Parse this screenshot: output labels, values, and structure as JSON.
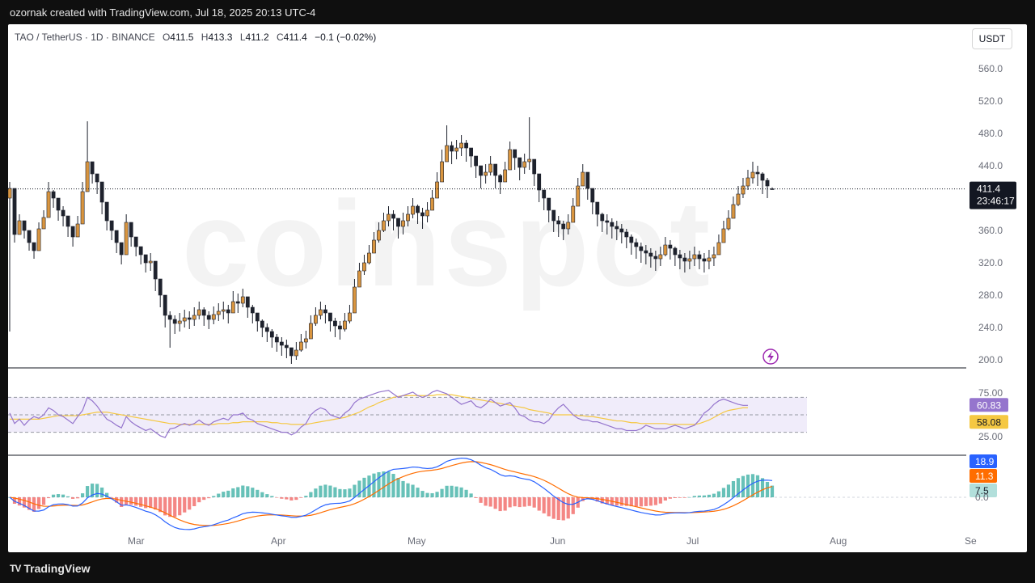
{
  "header": {
    "created_by": "ozornak created with TradingView.com, Jul 18, 2025 20:13 UTC-4"
  },
  "legend": {
    "symbol": "TAO / TetherUS · 1D · BINANCE",
    "o_label": "O",
    "o_value": "411.5",
    "h_label": "H",
    "h_value": "413.3",
    "l_label": "L",
    "l_value": "411.2",
    "c_label": "C",
    "c_value": "411.4",
    "change": "−0.1 (−0.02%)"
  },
  "currency": "USDT",
  "watermark": {
    "text": "coinspot"
  },
  "footer": {
    "brand": "TradingView",
    "brand_mark": "TV"
  },
  "colors": {
    "up": "#d9953f",
    "down": "#1e222d",
    "rsi": "#9575cd",
    "rsi_ma": "#f5c842",
    "macd": "#2962ff",
    "signal": "#ff6d00",
    "hist_pos": "#26a69a",
    "hist_neg": "#ef5350",
    "last_price_bg": "#131722",
    "lightning": "#9c27b0"
  },
  "chart_data": [
    {
      "type": "candlestick",
      "y_ticks": [
        "560.0",
        "520.0",
        "480.0",
        "440.0",
        "400.0",
        "360.0",
        "320.0",
        "280.0",
        "240.0",
        "200.0"
      ],
      "x_ticks": [
        "Mar",
        "Apr",
        "May",
        "Jun",
        "Jul",
        "Aug",
        "Se"
      ],
      "last_price": "411.4",
      "countdown": "23:46:17",
      "close_series": [
        412,
        355,
        372,
        360,
        345,
        335,
        362,
        376,
        408,
        400,
        385,
        378,
        365,
        352,
        368,
        408,
        445,
        430,
        420,
        395,
        372,
        360,
        345,
        330,
        370,
        352,
        340,
        330,
        320,
        322,
        300,
        280,
        255,
        250,
        245,
        248,
        252,
        250,
        255,
        262,
        255,
        250,
        256,
        260,
        262,
        258,
        272,
        270,
        278,
        265,
        258,
        248,
        240,
        235,
        228,
        222,
        218,
        215,
        205,
        212,
        222,
        226,
        245,
        255,
        262,
        258,
        248,
        242,
        238,
        248,
        258,
        290,
        310,
        320,
        332,
        348,
        360,
        372,
        380,
        375,
        365,
        372,
        380,
        390,
        382,
        378,
        385,
        400,
        420,
        445,
        465,
        458,
        462,
        468,
        462,
        452,
        440,
        428,
        432,
        442,
        428,
        420,
        435,
        460,
        450,
        438,
        445,
        448,
        430,
        410,
        400,
        385,
        372,
        368,
        362,
        370,
        390,
        415,
        432,
        412,
        395,
        380,
        372,
        370,
        365,
        362,
        358,
        352,
        345,
        340,
        335,
        332,
        328,
        325,
        330,
        342,
        338,
        330,
        326,
        322,
        325,
        330,
        325,
        322,
        326,
        330,
        345,
        362,
        375,
        392,
        405,
        415,
        425,
        432,
        430,
        422,
        415,
        411.4
      ],
      "high_series": [
        420,
        365,
        380,
        370,
        355,
        345,
        370,
        385,
        420,
        410,
        395,
        390,
        375,
        362,
        378,
        420,
        495,
        440,
        430,
        405,
        380,
        370,
        355,
        340,
        380,
        362,
        350,
        340,
        330,
        332,
        310,
        290,
        265,
        260,
        255,
        258,
        262,
        260,
        265,
        272,
        265,
        260,
        266,
        270,
        272,
        268,
        285,
        282,
        288,
        275,
        268,
        258,
        250,
        245,
        238,
        232,
        228,
        225,
        215,
        222,
        232,
        236,
        255,
        265,
        272,
        268,
        258,
        252,
        248,
        258,
        268,
        300,
        320,
        330,
        342,
        358,
        370,
        382,
        390,
        385,
        375,
        382,
        390,
        400,
        392,
        388,
        395,
        410,
        432,
        460,
        490,
        470,
        472,
        478,
        472,
        462,
        450,
        438,
        442,
        452,
        438,
        430,
        445,
        470,
        460,
        448,
        455,
        500,
        440,
        420,
        410,
        395,
        382,
        378,
        372,
        380,
        400,
        425,
        442,
        422,
        405,
        390,
        382,
        380,
        375,
        372,
        368,
        362,
        355,
        350,
        345,
        342,
        338,
        335,
        340,
        352,
        348,
        340,
        336,
        332,
        335,
        340,
        335,
        332,
        336,
        340,
        355,
        372,
        385,
        402,
        415,
        425,
        435,
        445,
        440,
        432,
        425,
        413.3
      ],
      "low_series": [
        235,
        345,
        360,
        350,
        335,
        325,
        350,
        365,
        395,
        388,
        372,
        365,
        352,
        340,
        355,
        395,
        425,
        418,
        405,
        380,
        360,
        348,
        332,
        318,
        355,
        340,
        328,
        318,
        308,
        310,
        285,
        265,
        240,
        215,
        232,
        235,
        240,
        238,
        242,
        250,
        242,
        238,
        244,
        248,
        250,
        245,
        258,
        258,
        265,
        252,
        245,
        235,
        228,
        222,
        215,
        210,
        205,
        202,
        195,
        200,
        210,
        214,
        232,
        242,
        250,
        245,
        235,
        228,
        225,
        235,
        245,
        275,
        295,
        305,
        318,
        335,
        345,
        358,
        365,
        360,
        350,
        355,
        365,
        375,
        368,
        362,
        370,
        385,
        405,
        430,
        448,
        442,
        448,
        452,
        445,
        438,
        425,
        412,
        418,
        428,
        412,
        405,
        420,
        445,
        435,
        422,
        430,
        435,
        415,
        395,
        385,
        370,
        358,
        352,
        348,
        355,
        375,
        400,
        418,
        398,
        380,
        365,
        358,
        355,
        350,
        348,
        344,
        338,
        330,
        325,
        320,
        318,
        314,
        310,
        316,
        328,
        324,
        316,
        312,
        308,
        312,
        316,
        312,
        308,
        312,
        316,
        330,
        348,
        360,
        378,
        390,
        400,
        410,
        418,
        415,
        405,
        400,
        411.2
      ],
      "open_series": [
        400,
        412,
        355,
        372,
        360,
        345,
        335,
        362,
        376,
        408,
        400,
        385,
        378,
        365,
        352,
        368,
        408,
        445,
        430,
        420,
        395,
        372,
        360,
        345,
        330,
        370,
        352,
        340,
        330,
        320,
        322,
        300,
        280,
        255,
        250,
        245,
        248,
        252,
        250,
        255,
        262,
        255,
        250,
        256,
        260,
        262,
        258,
        272,
        270,
        278,
        265,
        258,
        248,
        240,
        235,
        228,
        222,
        218,
        215,
        205,
        212,
        222,
        226,
        245,
        255,
        262,
        258,
        248,
        242,
        238,
        248,
        258,
        290,
        310,
        320,
        332,
        348,
        360,
        372,
        380,
        375,
        365,
        372,
        380,
        390,
        382,
        378,
        385,
        400,
        420,
        445,
        465,
        458,
        462,
        468,
        462,
        452,
        440,
        428,
        432,
        442,
        428,
        420,
        435,
        460,
        450,
        438,
        445,
        448,
        430,
        410,
        400,
        385,
        372,
        368,
        362,
        370,
        390,
        415,
        432,
        412,
        395,
        380,
        372,
        370,
        365,
        362,
        358,
        352,
        345,
        340,
        335,
        332,
        328,
        325,
        330,
        342,
        338,
        330,
        326,
        322,
        325,
        330,
        325,
        322,
        326,
        330,
        345,
        362,
        375,
        392,
        405,
        415,
        425,
        432,
        430,
        422,
        411.5
      ]
    },
    {
      "type": "line",
      "name": "RSI",
      "y_ticks": [
        "75.00",
        "25.00"
      ],
      "current": "60.83",
      "current_ma": "58.08",
      "rsi_series": [
        52,
        40,
        45,
        38,
        44,
        48,
        46,
        50,
        58,
        55,
        50,
        48,
        44,
        40,
        48,
        55,
        70,
        66,
        60,
        52,
        45,
        42,
        38,
        35,
        48,
        42,
        38,
        35,
        32,
        34,
        30,
        26,
        24,
        34,
        35,
        38,
        40,
        38,
        40,
        44,
        40,
        38,
        42,
        44,
        46,
        44,
        50,
        50,
        52,
        46,
        44,
        40,
        38,
        36,
        34,
        32,
        30,
        30,
        27,
        30,
        36,
        40,
        50,
        55,
        58,
        56,
        50,
        48,
        46,
        52,
        56,
        64,
        68,
        70,
        72,
        74,
        76,
        77,
        78,
        74,
        70,
        72,
        74,
        76,
        72,
        70,
        72,
        76,
        78,
        76,
        74,
        70,
        66,
        62,
        64,
        66,
        60,
        58,
        62,
        68,
        64,
        60,
        62,
        64,
        58,
        50,
        48,
        44,
        42,
        42,
        40,
        44,
        52,
        58,
        62,
        56,
        50,
        46,
        44,
        44,
        42,
        42,
        40,
        38,
        36,
        34,
        34,
        32,
        32,
        32,
        34,
        38,
        36,
        34,
        34,
        34,
        36,
        38,
        36,
        34,
        36,
        38,
        44,
        52,
        56,
        62,
        66,
        68,
        66,
        64,
        62,
        60.83,
        60.83
      ],
      "rsi_ma_series": [
        45,
        45,
        45,
        45,
        45,
        45,
        45,
        46,
        47,
        48,
        49,
        49,
        49,
        49,
        49,
        50,
        51,
        52,
        53,
        53,
        53,
        52,
        51,
        50,
        49,
        48,
        47,
        46,
        45,
        44,
        43,
        42,
        41,
        40,
        40,
        39,
        39,
        39,
        39,
        39,
        39,
        39,
        39,
        40,
        40,
        40,
        41,
        41,
        42,
        42,
        42,
        42,
        42,
        42,
        41,
        41,
        40,
        40,
        39,
        39,
        39,
        39,
        40,
        41,
        42,
        43,
        44,
        45,
        46,
        47,
        49,
        51,
        53,
        56,
        59,
        61,
        64,
        66,
        68,
        70,
        71,
        72,
        72,
        72,
        72,
        72,
        72,
        72,
        73,
        73,
        73,
        73,
        72,
        71,
        70,
        69,
        68,
        67,
        66,
        65,
        64,
        63,
        62,
        61,
        60,
        59,
        58,
        56,
        55,
        54,
        53,
        52,
        50,
        50,
        50,
        50,
        50,
        49,
        49,
        48,
        48,
        47,
        46,
        45,
        44,
        43,
        43,
        42,
        41,
        41,
        40,
        40,
        40,
        40,
        40,
        40,
        39,
        39,
        39,
        39,
        39,
        39,
        40,
        42,
        44,
        47,
        50,
        53,
        55,
        56,
        57,
        58.08,
        58.08
      ]
    },
    {
      "type": "line",
      "name": "MACD",
      "macd_value": "18.9",
      "signal_value": "11.3",
      "hist_value": "7.5",
      "y_ticks": [
        "0.0"
      ]
    }
  ]
}
